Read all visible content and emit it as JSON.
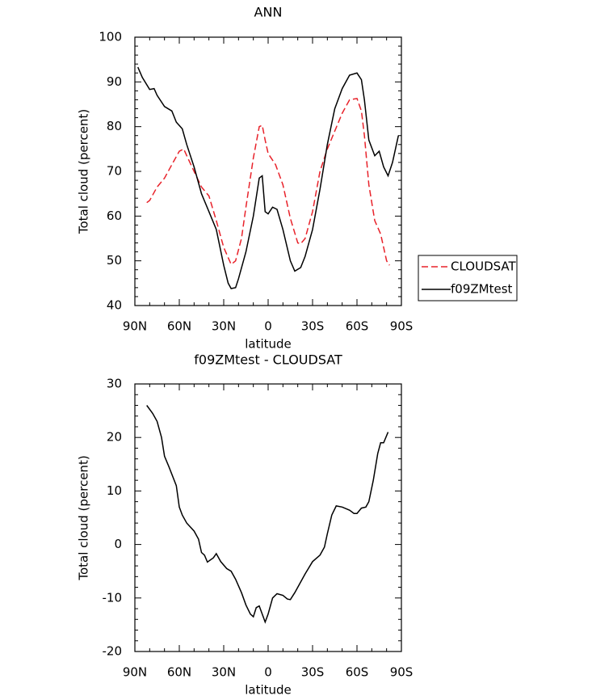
{
  "chart_data": [
    {
      "type": "line",
      "title": "ANN",
      "x_label": "latitude",
      "y_label": "Total cloud (percent)",
      "xlim": [
        90,
        -90
      ],
      "xticks": [
        {
          "value": 90,
          "label": "90N"
        },
        {
          "value": 60,
          "label": "60N"
        },
        {
          "value": 30,
          "label": "30N"
        },
        0,
        {
          "value": -30,
          "label": "30S"
        },
        {
          "value": -60,
          "label": "60S"
        },
        {
          "value": -90,
          "label": "90S"
        }
      ],
      "ylim": [
        40,
        100
      ],
      "yticks": [
        40,
        50,
        60,
        70,
        80,
        90,
        100
      ],
      "legend": "right",
      "series": [
        {
          "name": "CLOUDSAT",
          "color": "#e8222a",
          "style": "dashed",
          "x": [
            82,
            80,
            75,
            70,
            65,
            60,
            57,
            55,
            50,
            45,
            40,
            35,
            30,
            25,
            22,
            18,
            15,
            10,
            6,
            4,
            2,
            0,
            -5,
            -10,
            -15,
            -20,
            -22,
            -25,
            -30,
            -35,
            -40,
            -45,
            -50,
            -55,
            -60,
            -63,
            -65,
            -68,
            -72,
            -76,
            -80,
            -82
          ],
          "values": [
            63,
            63.5,
            66.5,
            68.5,
            71.5,
            74.5,
            75,
            73.5,
            70,
            66.5,
            64.5,
            59,
            53,
            49.2,
            50,
            55,
            62,
            73,
            80,
            80.3,
            77,
            74,
            71.5,
            67,
            59.5,
            54,
            53.8,
            55,
            61,
            70,
            75,
            79,
            83,
            86,
            86.3,
            83.5,
            78,
            67,
            59,
            56,
            50,
            49
          ]
        },
        {
          "name": "f09ZMtest",
          "color": "#000000",
          "style": "solid",
          "x": [
            88,
            85,
            80,
            77,
            75,
            70,
            65,
            62,
            58,
            55,
            50,
            45,
            40,
            35,
            30,
            27,
            25,
            22,
            20,
            15,
            10,
            6,
            4,
            2,
            0,
            -3,
            -6,
            -10,
            -15,
            -18,
            -22,
            -25,
            -30,
            -35,
            -40,
            -45,
            -50,
            -55,
            -60,
            -63,
            -65,
            -68,
            -72,
            -75,
            -78,
            -81,
            -84,
            -88
          ],
          "values": [
            93.3,
            91,
            88.3,
            88.5,
            87,
            84.5,
            83.5,
            81,
            79.5,
            76,
            71,
            65,
            61,
            57,
            49,
            45,
            43.8,
            44,
            46,
            52,
            60,
            68.5,
            69,
            61,
            60.5,
            62,
            61.5,
            57,
            50,
            47.7,
            48.5,
            51,
            57,
            66,
            76,
            84,
            88.5,
            91.5,
            92,
            90.5,
            86,
            77,
            73.5,
            74.5,
            71,
            69,
            72,
            78
          ]
        }
      ]
    },
    {
      "type": "line",
      "title": "f09ZMtest - CLOUDSAT",
      "x_label": "latitude",
      "y_label": "Total cloud (percent)",
      "xlim": [
        90,
        -90
      ],
      "xticks": [
        {
          "value": 90,
          "label": "90N"
        },
        {
          "value": 60,
          "label": "60N"
        },
        {
          "value": 30,
          "label": "30N"
        },
        0,
        {
          "value": -30,
          "label": "30S"
        },
        {
          "value": -60,
          "label": "60S"
        },
        {
          "value": -90,
          "label": "90S"
        }
      ],
      "ylim": [
        -20,
        30
      ],
      "yticks": [
        -20,
        -10,
        0,
        10,
        20,
        30
      ],
      "series": [
        {
          "color": "#000000",
          "style": "solid",
          "x": [
            82,
            78,
            75,
            72,
            70,
            67,
            62,
            60,
            58,
            55,
            50,
            47,
            45,
            43,
            41,
            37,
            35,
            32,
            28,
            25,
            22,
            18,
            15,
            12,
            10,
            8,
            6,
            4,
            2,
            0,
            -3,
            -6,
            -10,
            -13,
            -15,
            -18,
            -25,
            -30,
            -35,
            -38,
            -40,
            -43,
            -46,
            -50,
            -55,
            -58,
            -60,
            -63,
            -66,
            -68,
            -71,
            -74,
            -76,
            -78,
            -81
          ],
          "values": [
            26,
            24.5,
            23,
            20,
            16.5,
            14.5,
            11,
            7,
            5.5,
            4,
            2.5,
            1,
            -1.5,
            -2,
            -3.3,
            -2.5,
            -1.7,
            -3.2,
            -4.5,
            -5,
            -6.5,
            -9,
            -11.3,
            -13,
            -13.5,
            -11.8,
            -11.5,
            -13,
            -14.5,
            -13,
            -10,
            -9.2,
            -9.5,
            -10.2,
            -10.3,
            -9,
            -5.5,
            -3.2,
            -2,
            -0.5,
            2,
            5.5,
            7.2,
            7,
            6.4,
            5.8,
            5.8,
            6.8,
            7,
            8,
            12,
            17,
            19,
            19,
            21
          ]
        }
      ]
    }
  ]
}
